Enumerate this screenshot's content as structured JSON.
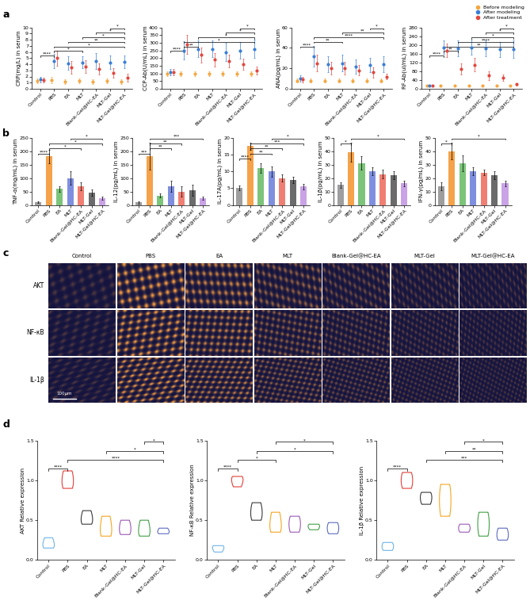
{
  "chart_data": [
    {
      "type": "scatter",
      "panel_label": "a",
      "y_label": "CRP(mg/L) in serum",
      "categories": [
        "Control",
        "PBS",
        "EA",
        "MLT",
        "Blank-Gel@HC-EA",
        "MLT-Gel",
        "MLT-Gel@HC-EA"
      ],
      "ylim": [
        0,
        10
      ],
      "yticks": [
        0,
        1,
        2,
        3,
        4,
        5,
        6,
        7,
        8,
        9,
        10
      ],
      "series": [
        {
          "name": "Before modeling",
          "color": "#f4a742",
          "marker": "o",
          "values": [
            1.3,
            1.4,
            1.2,
            1.3,
            1.2,
            1.3,
            1.2
          ],
          "errors": [
            0.4,
            0.5,
            0.4,
            0.4,
            0.4,
            0.4,
            0.4
          ]
        },
        {
          "name": "After modeling",
          "color": "#3a7fd5",
          "marker": "o",
          "values": [
            1.5,
            4.5,
            4.2,
            4.3,
            4.5,
            4.3,
            4.4
          ],
          "errors": [
            0.5,
            1.2,
            1.1,
            1.0,
            1.3,
            1.1,
            1.0
          ]
        },
        {
          "name": "After treatment",
          "color": "#e0483e",
          "marker": "o",
          "values": [
            1.4,
            5.0,
            3.5,
            3.6,
            3.2,
            2.6,
            1.8
          ],
          "errors": [
            0.4,
            1.2,
            1.0,
            1.0,
            0.9,
            0.8,
            0.6
          ]
        }
      ],
      "annotations": [
        {
          "from": 0,
          "to": 1,
          "text": "****"
        },
        {
          "from": 1,
          "to": 3,
          "text": "*"
        },
        {
          "from": 1,
          "to": 6,
          "text": "*"
        },
        {
          "from": 2,
          "to": 6,
          "text": "**"
        },
        {
          "from": 3,
          "to": 6,
          "text": "*"
        },
        {
          "from": 4,
          "to": 6,
          "text": "*"
        },
        {
          "from": 5,
          "to": 6,
          "text": "*"
        }
      ]
    },
    {
      "type": "scatter",
      "y_label": "CCP-Ab(U/mL) in serum",
      "categories": [
        "Control",
        "PBS",
        "EA",
        "MLT",
        "Blank-Gel@HC-EA",
        "MLT-Gel",
        "MLT-Gel@HC-EA"
      ],
      "ylim": [
        0,
        400
      ],
      "yticks": [
        0,
        50,
        100,
        150,
        200,
        250,
        300,
        350,
        400
      ],
      "series": [
        {
          "name": "Before modeling",
          "color": "#f4a742",
          "marker": "o",
          "values": [
            100,
            100,
            100,
            100,
            100,
            100,
            100
          ],
          "errors": [
            15,
            15,
            15,
            15,
            15,
            15,
            15
          ]
        },
        {
          "name": "After modeling",
          "color": "#3a7fd5",
          "marker": "o",
          "values": [
            110,
            250,
            260,
            260,
            240,
            250,
            260
          ],
          "errors": [
            20,
            60,
            55,
            55,
            60,
            55,
            60
          ]
        },
        {
          "name": "After treatment",
          "color": "#e0483e",
          "marker": "o",
          "values": [
            110,
            290,
            220,
            190,
            180,
            160,
            120
          ],
          "errors": [
            20,
            60,
            50,
            45,
            40,
            35,
            25
          ]
        }
      ],
      "annotations": [
        {
          "from": 0,
          "to": 1,
          "text": "****"
        },
        {
          "from": 1,
          "to": 2,
          "text": "**"
        },
        {
          "from": 1,
          "to": 6,
          "text": "*"
        },
        {
          "from": 2,
          "to": 6,
          "text": "*"
        },
        {
          "from": 4,
          "to": 6,
          "text": "*"
        },
        {
          "from": 5,
          "to": 6,
          "text": "*"
        }
      ]
    },
    {
      "type": "scatter",
      "y_label": "ANA(pg/mL) in serum",
      "categories": [
        "Control",
        "PBS",
        "EA",
        "MLT",
        "Blank-Gel@HC-EA",
        "MLT-Gel",
        "MLT-Gel@HC-EA"
      ],
      "ylim": [
        0,
        60
      ],
      "yticks": [
        0,
        20,
        40,
        60
      ],
      "series": [
        {
          "name": "Before modeling",
          "color": "#f4a742",
          "marker": "o",
          "values": [
            8,
            8,
            8,
            8,
            8,
            8,
            8
          ],
          "errors": [
            2,
            2,
            2,
            2,
            2,
            2,
            2
          ]
        },
        {
          "name": "After modeling",
          "color": "#3a7fd5",
          "marker": "o",
          "values": [
            10,
            32,
            24,
            25,
            22,
            23,
            24
          ],
          "errors": [
            3,
            10,
            8,
            8,
            7,
            7,
            8
          ]
        },
        {
          "name": "After treatment",
          "color": "#e0483e",
          "marker": "o",
          "values": [
            9,
            25,
            20,
            20,
            18,
            16,
            12
          ],
          "errors": [
            3,
            8,
            6,
            6,
            5,
            5,
            3
          ]
        }
      ],
      "annotations": [
        {
          "from": 0,
          "to": 1,
          "text": "****"
        },
        {
          "from": 1,
          "to": 3,
          "text": "**"
        },
        {
          "from": 1,
          "to": 6,
          "text": "****"
        },
        {
          "from": 3,
          "to": 6,
          "text": "**"
        },
        {
          "from": 5,
          "to": 6,
          "text": "*"
        }
      ]
    },
    {
      "type": "scatter",
      "y_label": "RF-Ab(uI/mL) in serum",
      "legend": "upper right",
      "categories": [
        "Control",
        "PBS",
        "EA",
        "MLT",
        "Blank-Gel@HC-EA",
        "MLT-Gel",
        "MLT-Gel@HC-EA"
      ],
      "ylim": [
        0,
        280
      ],
      "yticks": [
        0,
        40,
        80,
        120,
        160,
        200,
        240,
        280
      ],
      "series": [
        {
          "name": "Before modeling",
          "color": "#f4a742",
          "marker": "o",
          "values": [
            15,
            15,
            15,
            15,
            15,
            15,
            15
          ],
          "errors": [
            4,
            4,
            4,
            4,
            4,
            4,
            4
          ]
        },
        {
          "name": "After modeling",
          "color": "#3a7fd5",
          "marker": "o",
          "values": [
            15,
            190,
            185,
            190,
            185,
            180,
            180
          ],
          "errors": [
            4,
            30,
            35,
            35,
            35,
            35,
            40
          ]
        },
        {
          "name": "After treatment",
          "color": "#e0483e",
          "marker": "o",
          "values": [
            15,
            175,
            90,
            110,
            60,
            50,
            20
          ],
          "errors": [
            4,
            30,
            25,
            30,
            20,
            15,
            6
          ]
        }
      ],
      "annotations": [
        {
          "from": 0,
          "to": 1,
          "text": "****"
        },
        {
          "from": 1,
          "to": 2,
          "text": "**"
        },
        {
          "from": 1,
          "to": 6,
          "text": "**"
        },
        {
          "from": 2,
          "to": 6,
          "text": "****"
        },
        {
          "from": 3,
          "to": 6,
          "text": "*"
        },
        {
          "from": 4,
          "to": 6,
          "text": "*"
        },
        {
          "from": 5,
          "to": 6,
          "text": "*"
        }
      ]
    },
    {
      "type": "bar",
      "panel_label": "b",
      "y_label": "TNF-α(mg/mL) in serum",
      "categories": [
        "Control",
        "PBS",
        "EA",
        "MLT",
        "Blank-Gel@HC-EA",
        "MLT-Gel",
        "MLT-Gel@HC-EA"
      ],
      "colors": [
        "#9e9e9e",
        "#f5a24a",
        "#7cc47a",
        "#7f8fe0",
        "#f07f73",
        "#6b6b6b",
        "#c9a3e6"
      ],
      "ylim": [
        0,
        250
      ],
      "yticks": [
        0,
        50,
        100,
        150,
        200,
        250
      ],
      "values": [
        12,
        180,
        60,
        100,
        70,
        45,
        25
      ],
      "errors": [
        3,
        25,
        10,
        25,
        15,
        12,
        5
      ],
      "annotations": [
        {
          "from": 0,
          "to": 1,
          "text": "****"
        },
        {
          "from": 1,
          "to": 4,
          "text": "*"
        },
        {
          "from": 1,
          "to": 6,
          "text": "*"
        },
        {
          "from": 3,
          "to": 6,
          "text": "*"
        }
      ]
    },
    {
      "type": "bar",
      "y_label": "IL-12(pg/mL) in serum",
      "categories": [
        "Control",
        "PBS",
        "EA",
        "MLT",
        "Blank-Gel@HC-EA",
        "MLT-Gel",
        "MLT-Gel@HC-EA"
      ],
      "colors": [
        "#9e9e9e",
        "#f5a24a",
        "#7cc47a",
        "#7f8fe0",
        "#f07f73",
        "#6b6b6b",
        "#c9a3e6"
      ],
      "ylim": [
        0,
        250
      ],
      "yticks": [
        0,
        50,
        100,
        150,
        200,
        250
      ],
      "values": [
        10,
        180,
        35,
        70,
        50,
        55,
        25
      ],
      "errors": [
        5,
        50,
        8,
        20,
        20,
        20,
        5
      ],
      "annotations": [
        {
          "from": 0,
          "to": 1,
          "text": "***"
        },
        {
          "from": 1,
          "to": 3,
          "text": "**"
        },
        {
          "from": 1,
          "to": 4,
          "text": "**"
        },
        {
          "from": 1,
          "to": 6,
          "text": "***"
        }
      ]
    },
    {
      "type": "bar",
      "y_label": "IL-17A(pg/mL) in serum",
      "categories": [
        "Control",
        "PBS",
        "EA",
        "MLT",
        "Blank-Gel@HC-EA",
        "MLT-Gel",
        "MLT-Gel@HC-EA"
      ],
      "colors": [
        "#9e9e9e",
        "#f5a24a",
        "#7cc47a",
        "#7f8fe0",
        "#f07f73",
        "#6b6b6b",
        "#c9a3e6"
      ],
      "ylim": [
        0,
        20
      ],
      "yticks": [
        0,
        5,
        10,
        15,
        20
      ],
      "values": [
        5,
        17.5,
        11,
        10,
        8,
        7.5,
        5.5
      ],
      "errors": [
        0.7,
        1,
        1.5,
        1.5,
        1,
        1,
        0.8
      ],
      "annotations": [
        {
          "from": 0,
          "to": 1,
          "text": "****"
        },
        {
          "from": 1,
          "to": 3,
          "text": "**"
        },
        {
          "from": 1,
          "to": 4,
          "text": "**"
        },
        {
          "from": 1,
          "to": 6,
          "text": "***"
        },
        {
          "from": 3,
          "to": 6,
          "text": "*"
        }
      ]
    },
    {
      "type": "bar",
      "y_label": "IL-1β(pg/mL) in serum",
      "categories": [
        "Control",
        "PBS",
        "EA",
        "MLT",
        "Blank-Gel@HC-EA",
        "MLT-Gel",
        "MLT-Gel@HC-EA"
      ],
      "colors": [
        "#9e9e9e",
        "#f5a24a",
        "#7cc47a",
        "#7f8fe0",
        "#f07f73",
        "#6b6b6b",
        "#c9a3e6"
      ],
      "ylim": [
        0,
        50
      ],
      "yticks": [
        0,
        10,
        20,
        30,
        40,
        50
      ],
      "values": [
        15,
        39,
        31,
        25,
        23,
        22,
        16
      ],
      "errors": [
        2,
        7,
        5,
        3,
        3,
        3,
        2
      ],
      "annotations": [
        {
          "from": 0,
          "to": 1,
          "text": "*"
        },
        {
          "from": 1,
          "to": 6,
          "text": "*"
        }
      ]
    },
    {
      "type": "bar",
      "y_label": "IFN-γ(pg/mL) in serum",
      "categories": [
        "Control",
        "PBS",
        "EA",
        "MLT",
        "Blank-Gel@HC-EA",
        "MLT-Gel",
        "MLT-Gel@HC-EA"
      ],
      "colors": [
        "#9e9e9e",
        "#f5a24a",
        "#7cc47a",
        "#7f8fe0",
        "#f07f73",
        "#6b6b6b",
        "#c9a3e6"
      ],
      "ylim": [
        0,
        50
      ],
      "yticks": [
        0,
        10,
        20,
        30,
        40,
        50
      ],
      "values": [
        14,
        40,
        31,
        25,
        24,
        22,
        16
      ],
      "errors": [
        3,
        6,
        6,
        3,
        2,
        3,
        2
      ],
      "annotations": [
        {
          "from": 0,
          "to": 1,
          "text": "*"
        },
        {
          "from": 1,
          "to": 6,
          "text": "*"
        }
      ]
    },
    {
      "type": "violin",
      "panel_label": "d",
      "y_label": "AKT Relative expression",
      "categories": [
        "Control",
        "PBS",
        "EA",
        "MLT",
        "Blank-Gel@HC-EA",
        "MLT-Gel",
        "MLT-Gel@HC-EA"
      ],
      "colors": [
        "#6fb4e8",
        "#e2403a",
        "#3a3a3a",
        "#f5a623",
        "#9b59b6",
        "#43a047",
        "#5c6bc0"
      ],
      "ylim": [
        0,
        1.5
      ],
      "yticks": [
        {
          "value": 0,
          "label": "0.0"
        },
        {
          "value": 0.5,
          "label": "0.5"
        },
        {
          "value": 1,
          "label": "1.0"
        },
        {
          "value": 1.5,
          "label": "1.5"
        }
      ],
      "values": [
        [
          0.15,
          0.2,
          0.28
        ],
        [
          0.9,
          1.0,
          1.12
        ],
        [
          0.45,
          0.52,
          0.62
        ],
        [
          0.3,
          0.4,
          0.55
        ],
        [
          0.32,
          0.4,
          0.5
        ],
        [
          0.3,
          0.38,
          0.5
        ],
        [
          0.33,
          0.36,
          0.4
        ]
      ],
      "annotations": [
        {
          "from": 0,
          "to": 1,
          "text": "****"
        },
        {
          "from": 1,
          "to": 6,
          "text": "****"
        },
        {
          "from": 3,
          "to": 6,
          "text": "*"
        },
        {
          "from": 5,
          "to": 6,
          "text": "*"
        }
      ]
    },
    {
      "type": "violin",
      "y_label": "NF-κB Relative expression",
      "categories": [
        "Control",
        "PBS",
        "EA",
        "MLT",
        "Blank-Gel@HC-EA",
        "MLT-Gel",
        "MLT-Gel@HC-EA"
      ],
      "colors": [
        "#6fb4e8",
        "#e2403a",
        "#3a3a3a",
        "#f5a623",
        "#9b59b6",
        "#43a047",
        "#5c6bc0"
      ],
      "ylim": [
        0,
        1.5
      ],
      "yticks": [
        {
          "value": 0,
          "label": "0.0"
        },
        {
          "value": 0.5,
          "label": "0.5"
        },
        {
          "value": 1,
          "label": "1.0"
        },
        {
          "value": 1.5,
          "label": "1.5"
        }
      ],
      "values": [
        [
          0.1,
          0.15,
          0.18
        ],
        [
          0.92,
          1.0,
          1.05
        ],
        [
          0.5,
          0.6,
          0.72
        ],
        [
          0.35,
          0.45,
          0.6
        ],
        [
          0.35,
          0.45,
          0.55
        ],
        [
          0.38,
          0.42,
          0.45
        ],
        [
          0.33,
          0.4,
          0.47
        ]
      ],
      "annotations": [
        {
          "from": 0,
          "to": 1,
          "text": "****"
        },
        {
          "from": 1,
          "to": 3,
          "text": "*"
        },
        {
          "from": 2,
          "to": 6,
          "text": "*"
        },
        {
          "from": 3,
          "to": 6,
          "text": "*"
        }
      ]
    },
    {
      "type": "violin",
      "y_label": "IL-1β Relative expression",
      "categories": [
        "Control",
        "PBS",
        "EA",
        "MLT",
        "Blank-Gel@HC-EA",
        "MLT-Gel",
        "MLT-Gel@HC-EA"
      ],
      "colors": [
        "#6fb4e8",
        "#e2403a",
        "#3a3a3a",
        "#f5a623",
        "#9b59b6",
        "#43a047",
        "#5c6bc0"
      ],
      "ylim": [
        0,
        1.5
      ],
      "yticks": [
        {
          "value": 0,
          "label": "0.0"
        },
        {
          "value": 0.5,
          "label": "0.5"
        },
        {
          "value": 1,
          "label": "1.0"
        },
        {
          "value": 1.5,
          "label": "1.5"
        }
      ],
      "values": [
        [
          0.12,
          0.17,
          0.22
        ],
        [
          0.9,
          1.0,
          1.1
        ],
        [
          0.7,
          0.78,
          0.85
        ],
        [
          0.55,
          0.75,
          0.95
        ],
        [
          0.35,
          0.4,
          0.45
        ],
        [
          0.3,
          0.45,
          0.6
        ],
        [
          0.25,
          0.32,
          0.4
        ]
      ],
      "annotations": [
        {
          "from": 0,
          "to": 1,
          "text": "****"
        },
        {
          "from": 2,
          "to": 6,
          "text": "***"
        },
        {
          "from": 3,
          "to": 6,
          "text": "**"
        },
        {
          "from": 4,
          "to": 6,
          "text": "*"
        }
      ]
    }
  ],
  "image_panel": {
    "panel_label": "c",
    "columns": [
      "Control",
      "PBS",
      "EA",
      "MLT",
      "Blank-Gel@HC-EA",
      "MLT-Gel",
      "MLT-Gel@HC-EA"
    ],
    "rows": [
      "AKT",
      "NF-κB",
      "IL-1β"
    ],
    "scale_bar": "100μm"
  }
}
